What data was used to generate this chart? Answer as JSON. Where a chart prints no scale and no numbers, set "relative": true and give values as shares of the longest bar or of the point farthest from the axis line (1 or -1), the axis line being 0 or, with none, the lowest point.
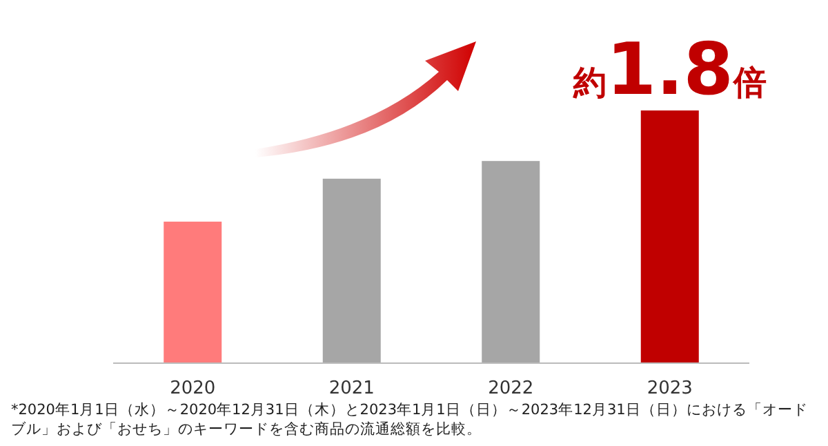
{
  "chart_data": {
    "type": "bar",
    "relative": true,
    "categories": [
      "2020",
      "2021",
      "2022",
      "2023"
    ],
    "values": [
      0.56,
      0.73,
      0.8,
      1
    ],
    "colors": [
      "#ff7b7b",
      "#a6a6a6",
      "#a6a6a6",
      "#c00000"
    ],
    "annotations": [
      {
        "text": "約1.8倍",
        "x": "2023",
        "y": 1
      },
      "*2020年1月1日（水）～2020年12月31日（木）と2023年1月1日（日）～2023年12月31日（日）における「オードブル」および「おせち」のキーワードを含む商品の流通総額を比較。"
    ]
  }
}
